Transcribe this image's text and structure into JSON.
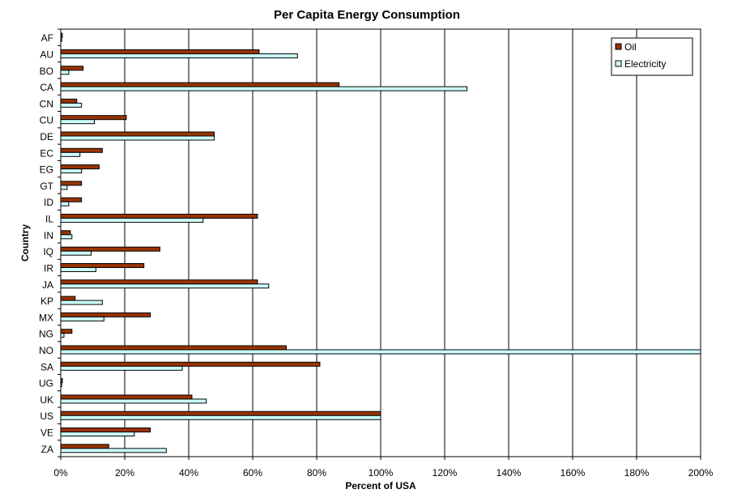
{
  "chart_data": {
    "type": "bar",
    "orientation": "horizontal",
    "title": "Per Capita Energy Consumption",
    "xlabel": "Percent of USA",
    "ylabel": "Country",
    "xlim": [
      0,
      200
    ],
    "x_ticks": [
      "0%",
      "20%",
      "40%",
      "60%",
      "80%",
      "100%",
      "120%",
      "140%",
      "160%",
      "180%",
      "200%"
    ],
    "grid": "vertical",
    "legend_position": "top-right",
    "categories": [
      "AF",
      "AU",
      "BO",
      "CA",
      "CN",
      "CU",
      "DE",
      "EC",
      "EG",
      "GT",
      "ID",
      "IL",
      "IN",
      "IQ",
      "IR",
      "JA",
      "KP",
      "MX",
      "NG",
      "NO",
      "SA",
      "UG",
      "UK",
      "US",
      "VE",
      "ZA"
    ],
    "series": [
      {
        "name": "Oil",
        "color": "#993300",
        "values": [
          0.5,
          62,
          7,
          87,
          5,
          20.5,
          48,
          13,
          12,
          6.5,
          6.5,
          61.5,
          3,
          31,
          26,
          61.5,
          4.5,
          28,
          3.5,
          70.5,
          81,
          0.5,
          41,
          100,
          28,
          15
        ]
      },
      {
        "name": "Electricity",
        "color": "#ccffff",
        "values": [
          0.3,
          74,
          2.5,
          127,
          6.5,
          10.5,
          48,
          6,
          6.5,
          2,
          2.5,
          44.5,
          3.5,
          9.5,
          11,
          65,
          13,
          13.5,
          1,
          201,
          38,
          0.3,
          45.5,
          100,
          23,
          33
        ]
      }
    ]
  }
}
